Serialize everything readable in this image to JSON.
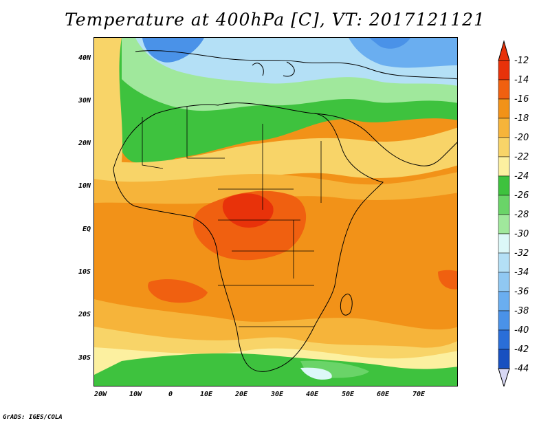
{
  "title": "Temperature at 400hPa [C], VT: 2017121121",
  "credit": "GrADS: IGES/COLA",
  "lat_ticks": [
    "40N",
    "30N",
    "20N",
    "10N",
    "EQ",
    "10S",
    "20S",
    "30S"
  ],
  "lon_ticks": [
    "20W",
    "10W",
    "0",
    "10E",
    "20E",
    "30E",
    "40E",
    "50E",
    "60E",
    "70E"
  ],
  "colorbar": {
    "labels": [
      "-12",
      "-14",
      "-16",
      "-18",
      "-20",
      "-22",
      "-24",
      "-26",
      "-28",
      "-30",
      "-32",
      "-34",
      "-36",
      "-38",
      "-40",
      "-42",
      "-44"
    ],
    "colors": [
      "#e8320a",
      "#f06010",
      "#f29218",
      "#f6b43a",
      "#f8d468",
      "#fcf0a0",
      "#3ec23e",
      "#6ad468",
      "#a0e89c",
      "#dcf8f8",
      "#b4e0f6",
      "#90c8f2",
      "#6aaef0",
      "#4a92e8",
      "#2a6ed8",
      "#1850c0",
      "#0a1e80"
    ],
    "top_arrow_color": "#e8320a",
    "bottom_arrow_color": "#d8d8f4"
  }
}
